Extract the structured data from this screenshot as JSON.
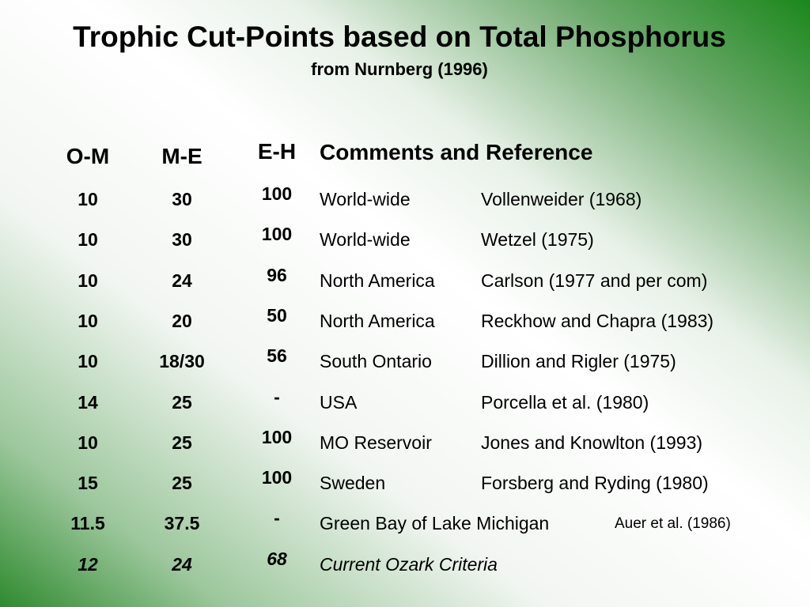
{
  "title": "Trophic Cut-Points based on Total Phosphorus",
  "subtitle": "from Nurnberg (1996)",
  "headers": {
    "om": "O-M",
    "me": "M-E",
    "eh": "E-H",
    "comments": "Comments and Reference"
  },
  "rows": [
    {
      "om": "10",
      "me": "30",
      "eh": "100",
      "region": "World-wide",
      "ref": "Vollenweider (1968)"
    },
    {
      "om": "10",
      "me": "30",
      "eh": "100",
      "region": "World-wide",
      "ref": "Wetzel (1975)"
    },
    {
      "om": "10",
      "me": "24",
      "eh": "96",
      "region": "North America",
      "ref": "Carlson (1977 and per com)"
    },
    {
      "om": "10",
      "me": "20",
      "eh": "50",
      "region": "North America",
      "ref": "Reckhow and Chapra (1983)"
    },
    {
      "om": "10",
      "me": "18/30",
      "eh": "56",
      "region": "South Ontario",
      "ref": "Dillion and Rigler (1975)"
    },
    {
      "om": "14",
      "me": "25",
      "eh": "-",
      "region": "USA",
      "ref": "Porcella et al. (1980)"
    },
    {
      "om": "10",
      "me": "25",
      "eh": "100",
      "region": "MO Reservoir",
      "ref": "Jones and Knowlton (1993)"
    },
    {
      "om": "15",
      "me": "25",
      "eh": "100",
      "region": "Sweden",
      "ref": "Forsberg and Ryding (1980)"
    },
    {
      "om": "11.5",
      "me": "37.5",
      "eh": "-",
      "region": "Green Bay of Lake Michigan",
      "ref": "Auer et al. (1986)"
    },
    {
      "om": "12",
      "me": "24",
      "eh": "68",
      "region": "Current Ozark Criteria",
      "ref": ""
    }
  ]
}
